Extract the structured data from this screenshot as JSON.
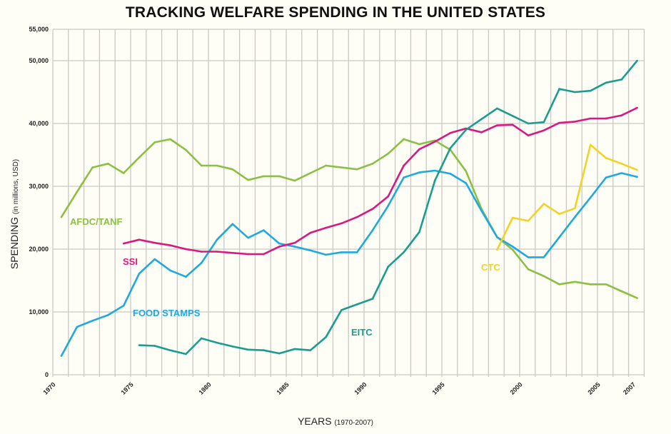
{
  "chart_data": {
    "type": "line",
    "title": "TRACKING WELFARE SPENDING IN THE UNITED STATES",
    "ylabel": {
      "main": "SPENDING",
      "sub": "(in millions, USD)"
    },
    "xlabel": {
      "main": "YEARS",
      "sub": "(1970-2007)"
    },
    "xlim": [
      1970,
      2007
    ],
    "ylim": [
      0,
      55000
    ],
    "grid": true,
    "legend": "inline labels",
    "x_ticks": [
      "1970",
      "1975",
      "1980",
      "1985",
      "1990",
      "1995",
      "2000",
      "2005",
      "2007"
    ],
    "y_ticks": [
      {
        "value": 0,
        "label": "0"
      },
      {
        "value": 10000,
        "label": "10,000"
      },
      {
        "value": 20000,
        "label": "20,000"
      },
      {
        "value": 30000,
        "label": "30,000"
      },
      {
        "value": 40000,
        "label": "40,000"
      },
      {
        "value": 50000,
        "label": "50,000"
      },
      {
        "value": 55000,
        "label": "55,000"
      }
    ],
    "series": [
      {
        "name": "AFDC/TANF",
        "color": "#8cc043",
        "start": 1970,
        "values": [
          25100,
          29100,
          33000,
          33600,
          32100,
          34600,
          37000,
          37500,
          35800,
          33300,
          33300,
          32700,
          31000,
          31600,
          31600,
          30900,
          32100,
          33300,
          33000,
          32700,
          33600,
          35200,
          37500,
          36700,
          37300,
          35800,
          32400,
          26400,
          21900,
          19900,
          16800,
          15700,
          14400,
          14800,
          14400,
          14400,
          13300,
          12200
        ]
      },
      {
        "name": "FOOD STAMPS",
        "color": "#1ea9e0",
        "start": 1970,
        "values": [
          3000,
          7600,
          8600,
          9500,
          11000,
          16100,
          18400,
          16600,
          15600,
          17800,
          21500,
          24000,
          21800,
          23000,
          20900,
          20400,
          19800,
          19100,
          19500,
          19500,
          23000,
          26900,
          31400,
          32200,
          32500,
          32000,
          30500,
          26100,
          21900,
          20400,
          18700,
          18700,
          21900,
          25100,
          28200,
          31400,
          32100,
          31500
        ]
      },
      {
        "name": "SSI",
        "color": "#d81a80",
        "start": 1974,
        "values": [
          20900,
          21500,
          21000,
          20600,
          20000,
          19600,
          19600,
          19400,
          19200,
          19200,
          20400,
          21000,
          22600,
          23400,
          24100,
          25100,
          26400,
          28400,
          33300,
          35900,
          37100,
          38500,
          39200,
          38600,
          39700,
          39800,
          38100,
          38900,
          40100,
          40300,
          40800,
          40800,
          41300,
          42500
        ]
      },
      {
        "name": "EITC",
        "color": "#1a9d8e",
        "start": 1975,
        "values": [
          4700,
          4600,
          3900,
          3300,
          5800,
          5100,
          4500,
          4000,
          3900,
          3400,
          4100,
          3900,
          6000,
          10300,
          11200,
          12100,
          17200,
          19500,
          22700,
          30900,
          36100,
          39000,
          40700,
          42400,
          41200,
          40000,
          40200,
          45500,
          45000,
          45200,
          46500,
          47000,
          50000
        ]
      },
      {
        "name": "CTC",
        "color": "#f4d225",
        "start": 1998,
        "values": [
          19900,
          25000,
          24500,
          27200,
          25600,
          26500,
          36600,
          34500,
          33600,
          32600
        ]
      }
    ]
  }
}
